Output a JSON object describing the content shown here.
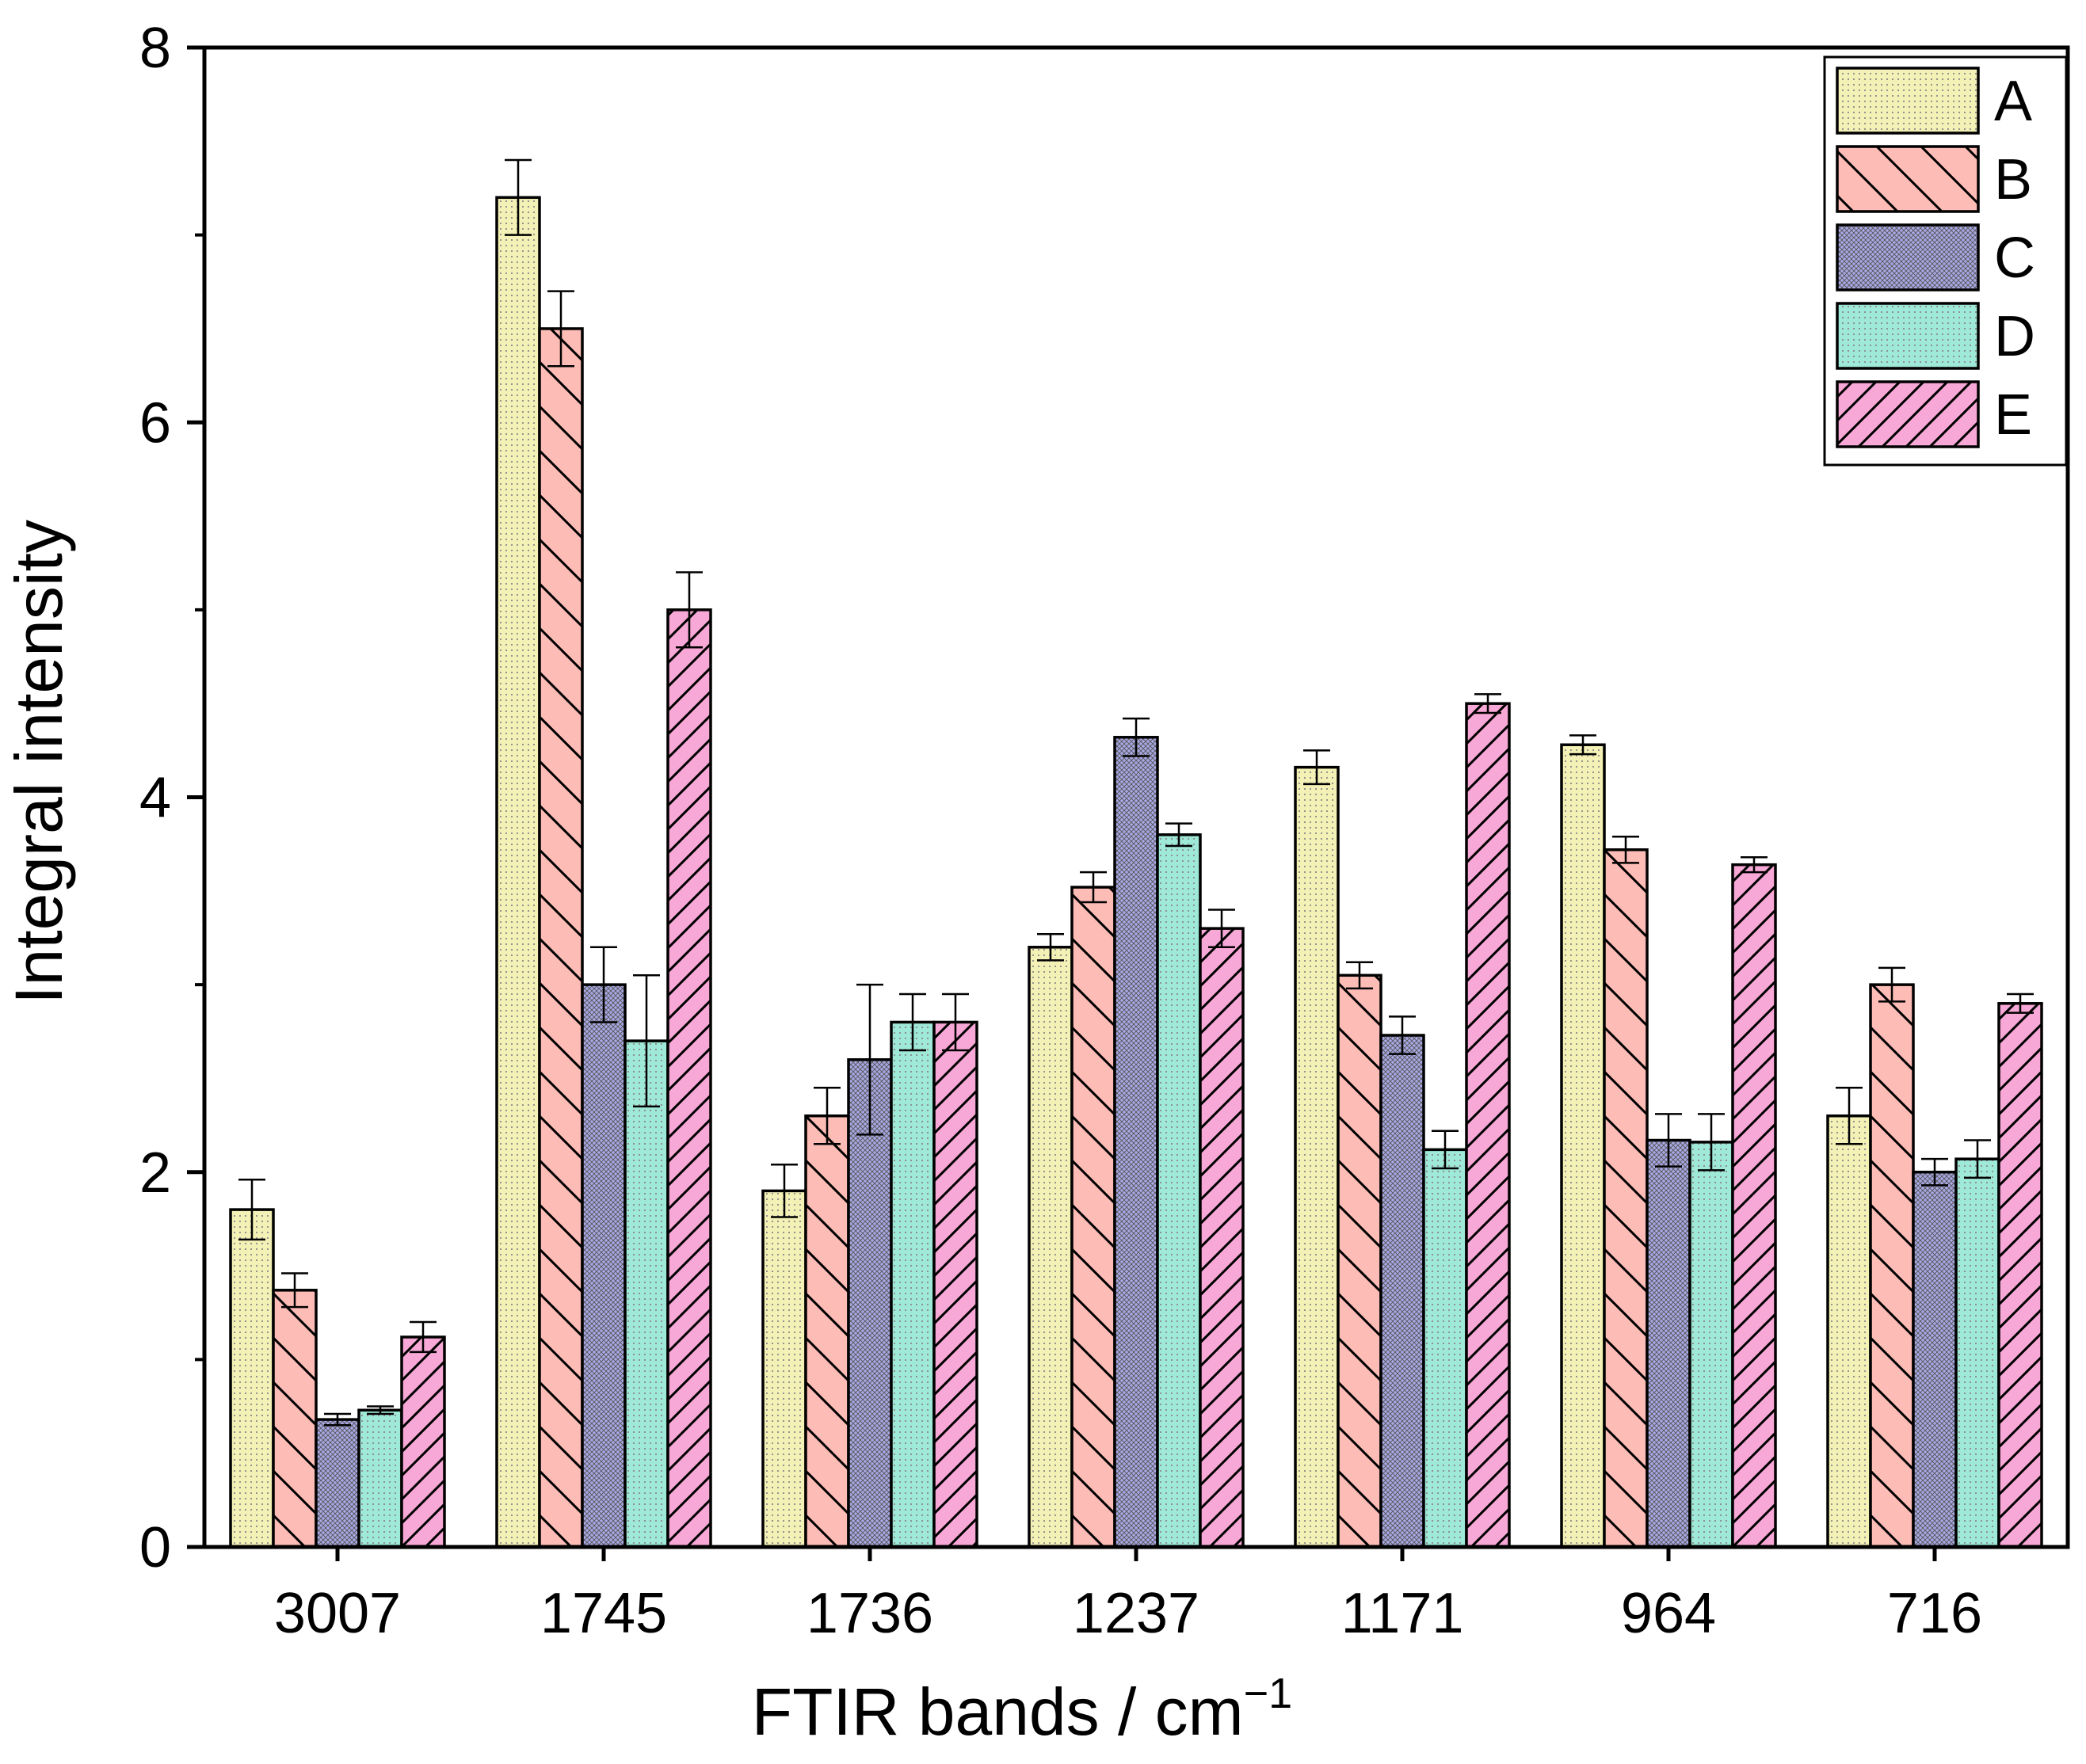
{
  "chart_data": {
    "type": "bar",
    "title": "",
    "xlabel": "FTIR bands / cm",
    "xlabel_superscript": "−1",
    "ylabel": "Integral intensity",
    "ylim": [
      0,
      8
    ],
    "yticks_major": [
      0,
      2,
      4,
      6,
      8
    ],
    "yticks_minor": [
      1,
      3,
      5,
      7
    ],
    "ytick_labels": [
      "0",
      "2",
      "4",
      "6",
      "8"
    ],
    "categories": [
      "3007",
      "1745",
      "1736",
      "1237",
      "1171",
      "964",
      "716"
    ],
    "grid": false,
    "legend_position": "top-right",
    "error_bars": true,
    "series": [
      {
        "name": "A",
        "color": "#f4f1b6",
        "pattern": "dots",
        "values": [
          1.8,
          7.2,
          1.9,
          3.2,
          4.16,
          4.28,
          2.3
        ],
        "errors": [
          0.16,
          0.2,
          0.14,
          0.07,
          0.09,
          0.05,
          0.15
        ]
      },
      {
        "name": "B",
        "color": "#fdbcb6",
        "pattern": "backslash",
        "values": [
          1.37,
          6.5,
          2.3,
          3.52,
          3.05,
          3.72,
          3.0
        ],
        "errors": [
          0.09,
          0.2,
          0.15,
          0.08,
          0.07,
          0.07,
          0.09
        ]
      },
      {
        "name": "C",
        "color": "#a9a8e6",
        "pattern": "crosshatch",
        "values": [
          0.68,
          3.0,
          2.6,
          4.32,
          2.73,
          2.17,
          2.0
        ],
        "errors": [
          0.03,
          0.2,
          0.4,
          0.1,
          0.1,
          0.14,
          0.07
        ]
      },
      {
        "name": "D",
        "color": "#9fe9d8",
        "pattern": "dots",
        "values": [
          0.73,
          2.7,
          2.8,
          3.8,
          2.12,
          2.16,
          2.07
        ],
        "errors": [
          0.02,
          0.35,
          0.15,
          0.06,
          0.1,
          0.15,
          0.1
        ]
      },
      {
        "name": "E",
        "color": "#f8a8d6",
        "pattern": "slash",
        "values": [
          1.12,
          5.0,
          2.8,
          3.3,
          4.5,
          3.64,
          2.9
        ],
        "errors": [
          0.08,
          0.2,
          0.15,
          0.1,
          0.05,
          0.04,
          0.05
        ]
      }
    ]
  }
}
